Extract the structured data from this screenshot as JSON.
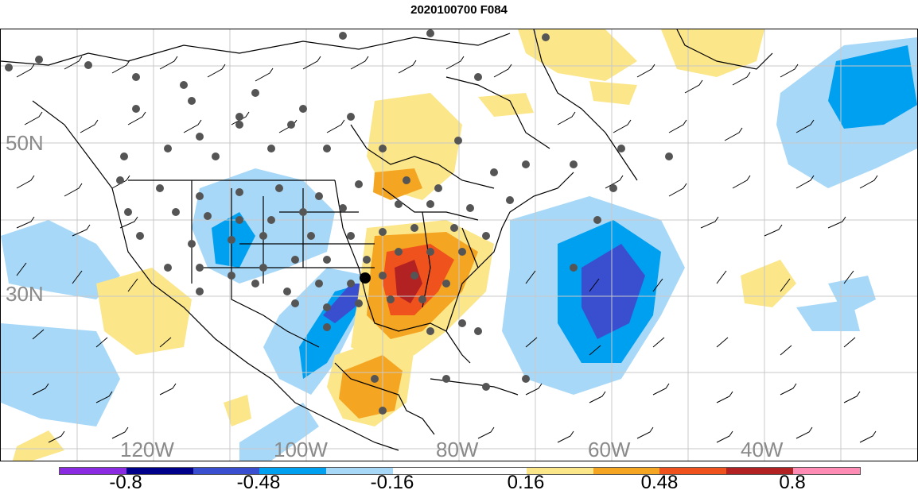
{
  "title": "2020100700 F084",
  "lat_labels": [
    "50N",
    "30N"
  ],
  "lon_labels": [
    "120W",
    "100W",
    "80W",
    "60W",
    "40W"
  ],
  "colorbar": {
    "colors": [
      "#8a2be2",
      "#00008b",
      "#3a4fd0",
      "#00a0f0",
      "#a8d8f8",
      "#ffffff",
      "#ffffff",
      "#fbe68a",
      "#f4a623",
      "#f0521e",
      "#b22222",
      "#ff8cb4"
    ],
    "tick_labels": [
      "-0.8",
      "-0.48",
      "-0.16",
      "0.16",
      "0.48",
      "0.8"
    ]
  },
  "map_colors": {
    "light_blue": "#a8d8f8",
    "blue": "#00a0f0",
    "dark_blue": "#3a4fd0",
    "light_yellow": "#fbe68a",
    "orange": "#f4a623",
    "red_orange": "#f0521e",
    "dark_red": "#b22222",
    "station_dot": "#555555",
    "grid": "#c8c8c8"
  }
}
